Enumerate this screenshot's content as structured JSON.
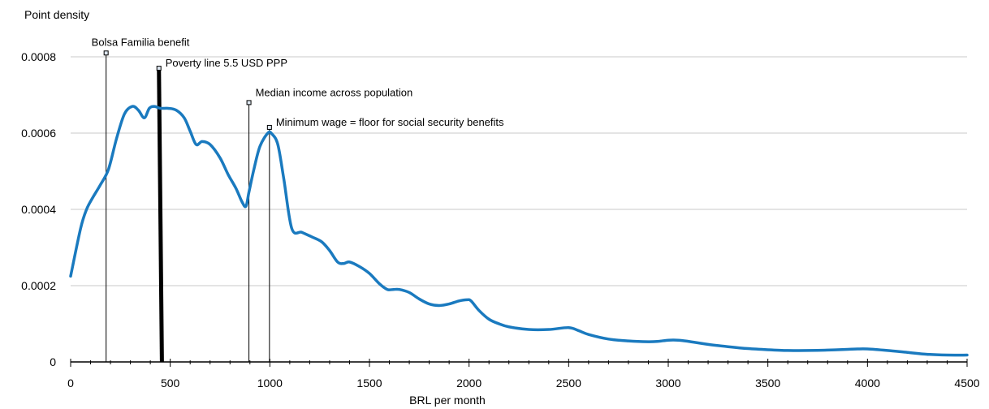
{
  "chart_data": {
    "type": "line",
    "ylabel": "Point density",
    "xlabel": "BRL per month",
    "xlim": [
      0,
      4500
    ],
    "ylim": [
      0,
      0.0008
    ],
    "grid": "horizontal",
    "x_ticks": [
      0,
      500,
      1000,
      1500,
      2000,
      2500,
      3000,
      3500,
      4000,
      4500
    ],
    "y_ticks": [
      {
        "value": 0,
        "label": "0"
      },
      {
        "value": 0.0002,
        "label": "0.0002"
      },
      {
        "value": 0.0004,
        "label": "0.0004"
      },
      {
        "value": 0.0006,
        "label": "0.0006"
      },
      {
        "value": 0.0008,
        "label": "0.0008"
      }
    ],
    "series": [
      {
        "color": "#1a7abf",
        "x": [
          0,
          50,
          80,
          110,
          150,
          190,
          230,
          270,
          310,
          340,
          370,
          395,
          420,
          450,
          490,
          530,
          570,
          600,
          630,
          660,
          700,
          750,
          790,
          830,
          860,
          880,
          895,
          920,
          950,
          990,
          1010,
          1040,
          1070,
          1110,
          1160,
          1210,
          1260,
          1300,
          1340,
          1370,
          1400,
          1450,
          1500,
          1550,
          1590,
          1620,
          1650,
          1700,
          1750,
          1800,
          1850,
          1900,
          1950,
          1990,
          2010,
          2050,
          2100,
          2150,
          2200,
          2300,
          2400,
          2500,
          2550,
          2600,
          2700,
          2800,
          2900,
          2950,
          3000,
          3050,
          3100,
          3200,
          3300,
          3400,
          3500,
          3600,
          3700,
          3800,
          3900,
          3950,
          4000,
          4100,
          4200,
          4300,
          4400,
          4500
        ],
        "y": [
          0.000225,
          0.00035,
          0.0004,
          0.00043,
          0.000465,
          0.000505,
          0.000585,
          0.00065,
          0.00067,
          0.00066,
          0.00064,
          0.000665,
          0.00067,
          0.000665,
          0.000665,
          0.00066,
          0.00064,
          0.000605,
          0.00057,
          0.000578,
          0.00057,
          0.000535,
          0.000492,
          0.000455,
          0.00042,
          0.000408,
          0.000445,
          0.000505,
          0.000565,
          0.0006,
          0.000598,
          0.00057,
          0.00048,
          0.00035,
          0.00034,
          0.000328,
          0.000315,
          0.000292,
          0.000262,
          0.000258,
          0.000262,
          0.00025,
          0.000232,
          0.000205,
          0.00019,
          0.00019,
          0.00019,
          0.000182,
          0.000165,
          0.000152,
          0.000148,
          0.000152,
          0.00016,
          0.000163,
          0.00016,
          0.000135,
          0.000112,
          0.0001,
          9.2e-05,
          8.5e-05,
          8.5e-05,
          9e-05,
          8.2e-05,
          7.2e-05,
          6e-05,
          5.5e-05,
          5.3e-05,
          5.4e-05,
          5.7e-05,
          5.7e-05,
          5.4e-05,
          4.6e-05,
          4e-05,
          3.5e-05,
          3.2e-05,
          3e-05,
          3e-05,
          3.1e-05,
          3.3e-05,
          3.4e-05,
          3.4e-05,
          3e-05,
          2.5e-05,
          2e-05,
          1.8e-05,
          1.8e-05
        ]
      }
    ],
    "annotations": [
      {
        "label": "Bolsa Familia benefit",
        "x": 178,
        "y_top": 0.00081,
        "line_width": 1
      },
      {
        "label": "Poverty line 5.5 USD PPP",
        "x": 450,
        "y_top": 0.00077,
        "line_width": 5,
        "tilt_to_x": 435
      },
      {
        "label": "Median income across population",
        "x": 895,
        "y_top": 0.00068,
        "line_width": 1
      },
      {
        "label": "Minimum wage = floor for social security benefits",
        "x": 998,
        "y_top": 0.000615,
        "line_width": 1
      }
    ]
  }
}
